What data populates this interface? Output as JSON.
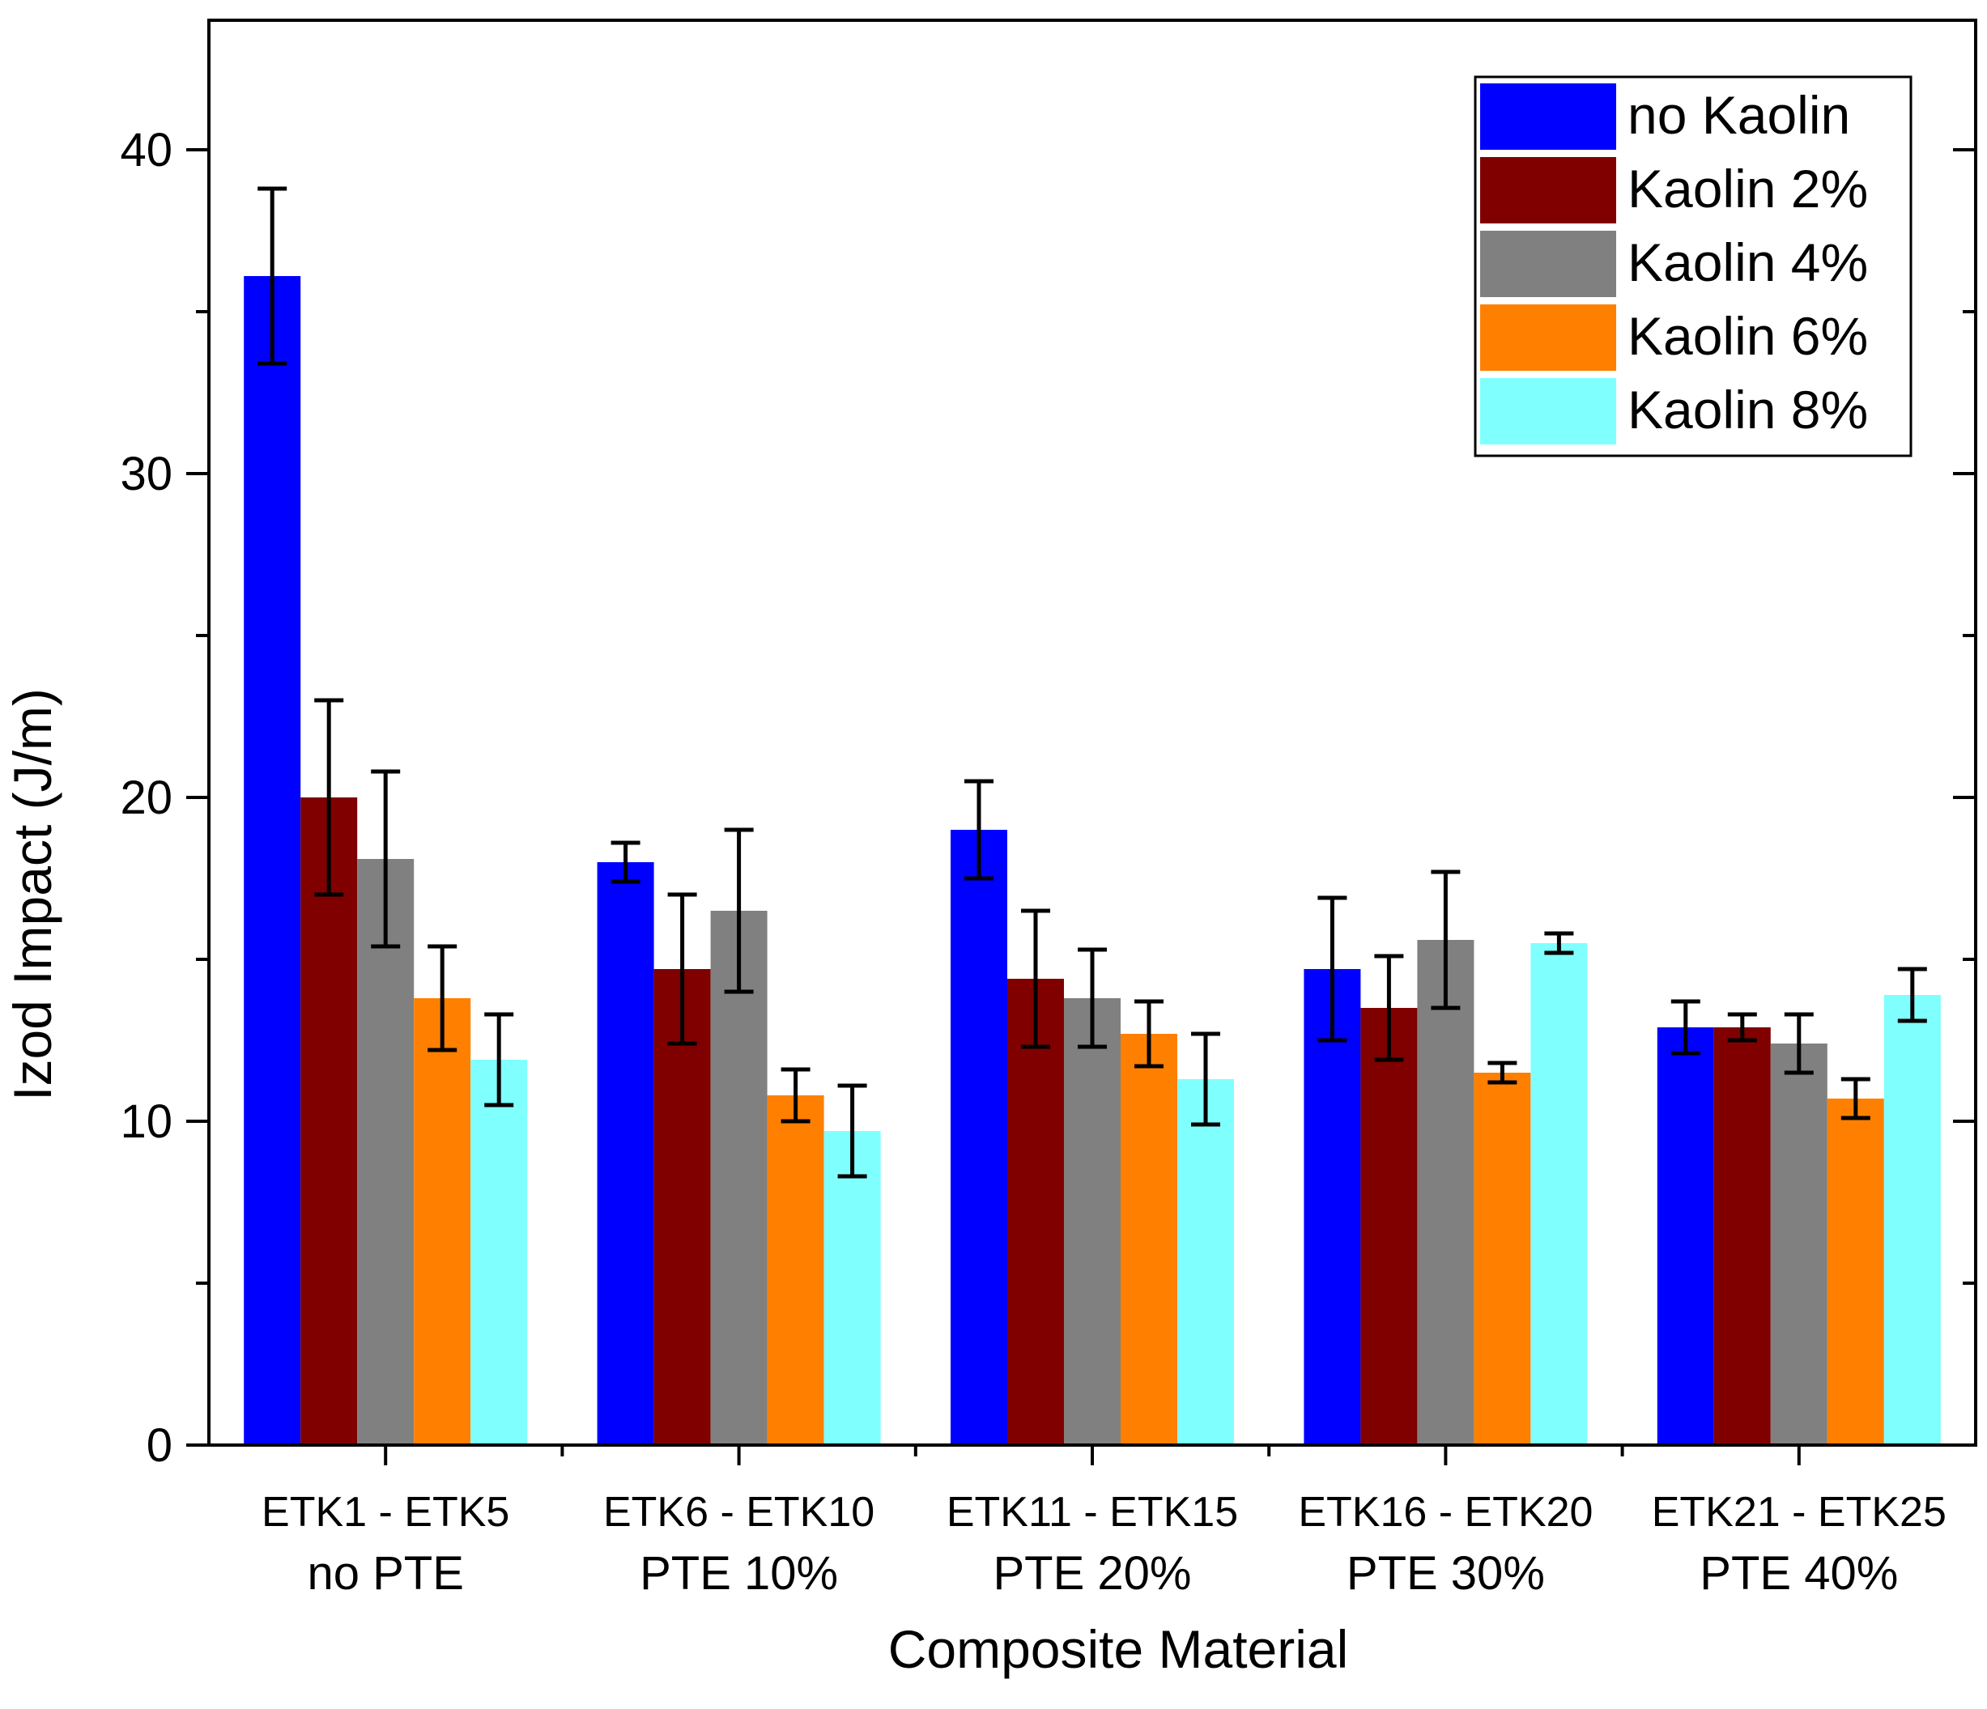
{
  "chart_data": {
    "type": "bar",
    "title": "",
    "xlabel": "Composite Material",
    "ylabel": "Izod Impact (J/m)",
    "ylim": [
      0,
      44
    ],
    "yticks": [
      0,
      10,
      20,
      30,
      40
    ],
    "yticks_minor": [
      5,
      15,
      25,
      35
    ],
    "grid": false,
    "legend_position": "top-right",
    "categories": [
      {
        "line1": "ETK1 - ETK5",
        "line2": "no PTE"
      },
      {
        "line1": "ETK6 - ETK10",
        "line2": "PTE 10%"
      },
      {
        "line1": "ETK11 - ETK15",
        "line2": "PTE 20%"
      },
      {
        "line1": "ETK16 - ETK20",
        "line2": "PTE 30%"
      },
      {
        "line1": "ETK21 - ETK25",
        "line2": "PTE 40%"
      }
    ],
    "series": [
      {
        "name": "no Kaolin",
        "color": "#0000ff",
        "values": [
          36.1,
          18.0,
          19.0,
          14.7,
          12.9
        ],
        "errors": [
          2.7,
          0.6,
          1.5,
          2.2,
          0.8
        ]
      },
      {
        "name": "Kaolin 2%",
        "color": "#800000",
        "values": [
          20.0,
          14.7,
          14.4,
          13.5,
          12.9
        ],
        "errors": [
          3.0,
          2.3,
          2.1,
          1.6,
          0.4
        ]
      },
      {
        "name": "Kaolin 4%",
        "color": "#808080",
        "values": [
          18.1,
          16.5,
          13.8,
          15.6,
          12.4
        ],
        "errors": [
          2.7,
          2.5,
          1.5,
          2.1,
          0.9
        ]
      },
      {
        "name": "Kaolin 6%",
        "color": "#ff8000",
        "values": [
          13.8,
          10.8,
          12.7,
          11.5,
          10.7
        ],
        "errors": [
          1.6,
          0.8,
          1.0,
          0.3,
          0.6
        ]
      },
      {
        "name": "Kaolin 8%",
        "color": "#80ffff",
        "values": [
          11.9,
          9.7,
          11.3,
          15.5,
          13.9
        ],
        "errors": [
          1.4,
          1.4,
          1.4,
          0.3,
          0.8
        ]
      }
    ]
  }
}
